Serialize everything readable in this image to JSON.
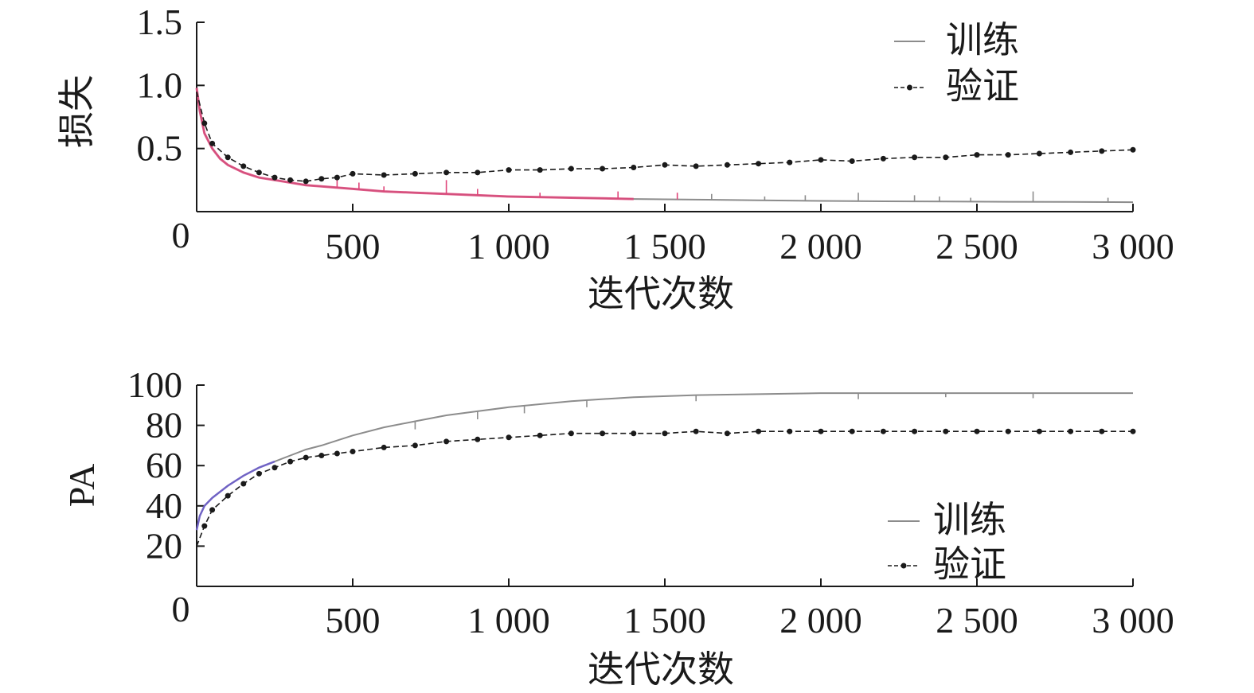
{
  "chart_data": [
    {
      "type": "line",
      "xlabel": "迭代次数",
      "ylabel": "损失",
      "xlim": [
        0,
        3000
      ],
      "ylim": [
        0,
        1.5
      ],
      "x_ticks": [
        500,
        1000,
        1500,
        2000,
        2500,
        3000
      ],
      "x_tick_labels": [
        "500",
        "1 000",
        "1 500",
        "2 000",
        "2 500",
        "3 000"
      ],
      "y_ticks": [
        0.5,
        1.0,
        1.5
      ],
      "y_tick_labels": [
        "0.5",
        "1.0",
        "1.5"
      ],
      "origin_label": "0",
      "grid": false,
      "legend_position": "top-right",
      "series": [
        {
          "name": "训练",
          "style": "solid",
          "color": "#8c8c8c",
          "x": [
            0,
            10,
            25,
            50,
            75,
            100,
            150,
            200,
            250,
            300,
            350,
            400,
            500,
            600,
            700,
            800,
            900,
            1000,
            1200,
            1400,
            1600,
            1800,
            2000,
            2200,
            2400,
            2600,
            2800,
            3000
          ],
          "values": [
            0.98,
            0.8,
            0.62,
            0.5,
            0.42,
            0.37,
            0.31,
            0.27,
            0.25,
            0.23,
            0.21,
            0.2,
            0.18,
            0.16,
            0.15,
            0.14,
            0.13,
            0.12,
            0.11,
            0.1,
            0.095,
            0.09,
            0.085,
            0.082,
            0.08,
            0.078,
            0.077,
            0.075
          ],
          "spikes": [
            {
              "x": 450,
              "y": 0.26
            },
            {
              "x": 520,
              "y": 0.23
            },
            {
              "x": 600,
              "y": 0.2
            },
            {
              "x": 800,
              "y": 0.25
            },
            {
              "x": 900,
              "y": 0.18
            },
            {
              "x": 1100,
              "y": 0.15
            },
            {
              "x": 1350,
              "y": 0.16
            },
            {
              "x": 1540,
              "y": 0.15
            },
            {
              "x": 1650,
              "y": 0.14
            },
            {
              "x": 1820,
              "y": 0.12
            },
            {
              "x": 1950,
              "y": 0.13
            },
            {
              "x": 2120,
              "y": 0.15
            },
            {
              "x": 2300,
              "y": 0.13
            },
            {
              "x": 2380,
              "y": 0.12
            },
            {
              "x": 2480,
              "y": 0.11
            },
            {
              "x": 2680,
              "y": 0.16
            },
            {
              "x": 2920,
              "y": 0.11
            }
          ]
        },
        {
          "name": "验证",
          "style": "dashed-dot",
          "color": "#1a1a1a",
          "x": [
            0,
            25,
            50,
            100,
            150,
            200,
            250,
            300,
            350,
            400,
            450,
            500,
            600,
            700,
            800,
            900,
            1000,
            1100,
            1200,
            1300,
            1400,
            1500,
            1600,
            1700,
            1800,
            1900,
            2000,
            2100,
            2200,
            2300,
            2400,
            2500,
            2600,
            2700,
            2800,
            2900,
            3000
          ],
          "values": [
            0.95,
            0.7,
            0.54,
            0.43,
            0.36,
            0.31,
            0.27,
            0.25,
            0.24,
            0.26,
            0.27,
            0.3,
            0.29,
            0.3,
            0.31,
            0.31,
            0.33,
            0.33,
            0.34,
            0.34,
            0.35,
            0.37,
            0.36,
            0.37,
            0.38,
            0.39,
            0.41,
            0.4,
            0.42,
            0.43,
            0.43,
            0.45,
            0.45,
            0.46,
            0.47,
            0.48,
            0.49
          ]
        }
      ]
    },
    {
      "type": "line",
      "xlabel": "迭代次数",
      "ylabel": "PA",
      "xlim": [
        0,
        3000
      ],
      "ylim": [
        0,
        100
      ],
      "x_ticks": [
        500,
        1000,
        1500,
        2000,
        2500,
        3000
      ],
      "x_tick_labels": [
        "500",
        "1 000",
        "1 500",
        "2 000",
        "2 500",
        "3 000"
      ],
      "y_ticks": [
        20,
        40,
        60,
        80,
        100
      ],
      "y_tick_labels": [
        "20",
        "40",
        "60",
        "80",
        "100"
      ],
      "origin_label": "0",
      "grid": false,
      "legend_position": "bottom-right",
      "series": [
        {
          "name": "训练",
          "style": "solid",
          "color": "#8c8c8c",
          "x": [
            0,
            10,
            25,
            50,
            75,
            100,
            150,
            200,
            250,
            300,
            350,
            400,
            500,
            600,
            700,
            800,
            900,
            1000,
            1200,
            1400,
            1600,
            1800,
            2000,
            2200,
            2400,
            2600,
            2800,
            3000
          ],
          "values": [
            28,
            35,
            40,
            44,
            47,
            50,
            55,
            59,
            62,
            65,
            68,
            70,
            75,
            79,
            82,
            85,
            87,
            89,
            92,
            94,
            95,
            95.5,
            96,
            96,
            96,
            96,
            96,
            96
          ],
          "spikes": [
            {
              "x": 700,
              "y": 78
            },
            {
              "x": 900,
              "y": 83
            },
            {
              "x": 1050,
              "y": 86
            },
            {
              "x": 1250,
              "y": 89
            },
            {
              "x": 1600,
              "y": 92
            },
            {
              "x": 2120,
              "y": 93
            },
            {
              "x": 2400,
              "y": 94
            },
            {
              "x": 2680,
              "y": 93.5
            }
          ]
        },
        {
          "name": "验证",
          "style": "dashed-dot",
          "color": "#1a1a1a",
          "x": [
            0,
            25,
            50,
            100,
            150,
            200,
            250,
            300,
            350,
            400,
            450,
            500,
            600,
            700,
            800,
            900,
            1000,
            1100,
            1200,
            1300,
            1400,
            1500,
            1600,
            1700,
            1800,
            1900,
            2000,
            2100,
            2200,
            2300,
            2400,
            2500,
            2600,
            2700,
            2800,
            2900,
            3000
          ],
          "values": [
            20,
            30,
            38,
            45,
            51,
            56,
            59,
            62,
            64,
            65,
            66,
            67,
            69,
            70,
            72,
            73,
            74,
            75,
            76,
            76,
            76,
            76,
            77,
            76,
            77,
            77,
            77,
            77,
            77,
            77,
            77,
            77,
            77,
            77,
            77,
            77,
            77
          ]
        }
      ]
    }
  ]
}
